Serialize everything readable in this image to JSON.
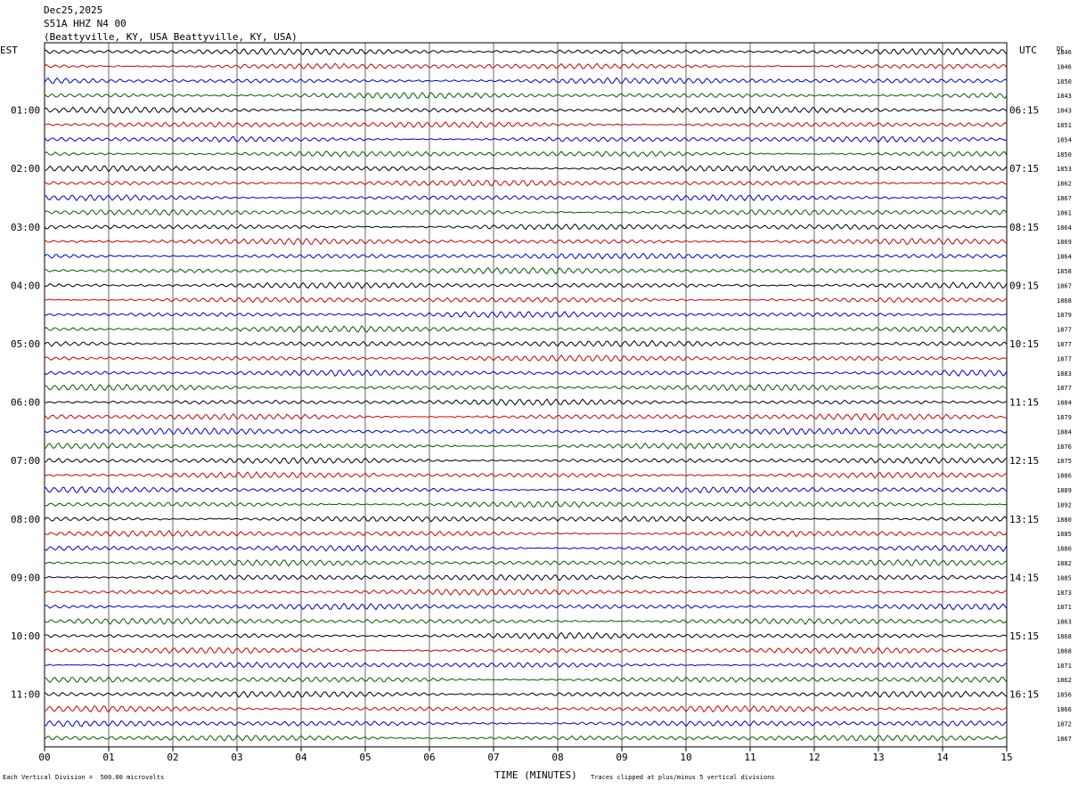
{
  "header": {
    "date": "Dec25,2025",
    "station": "S51A HHZ N4 00",
    "location": "(Beattyville, KY, USA Beattyville, KY, USA)"
  },
  "axes": {
    "left_timezone": "EST",
    "right_timezone": "UTC",
    "right_column_label": "DC",
    "xlabel": "TIME (MINUTES)",
    "x_ticks": [
      "00",
      "01",
      "02",
      "03",
      "04",
      "05",
      "06",
      "07",
      "08",
      "09",
      "10",
      "11",
      "12",
      "13",
      "14",
      "15"
    ]
  },
  "footer": {
    "scale_note": "Each Vertical Division =  500.00 microvolts",
    "clip_note": "Traces clipped at plus/minus 5 vertical divisions"
  },
  "colors": {
    "trace_cycle": [
      "#000000",
      "#d00000",
      "#0000c8",
      "#006000"
    ],
    "grid": "#000000"
  },
  "chart_data": {
    "type": "line",
    "title": "",
    "xlabel": "TIME (MINUTES)",
    "x_range": [
      0,
      15
    ],
    "trace_count": 48,
    "left_hour_labels": [
      "",
      "01:00",
      "02:00",
      "03:00",
      "04:00",
      "05:00",
      "06:00",
      "07:00",
      "08:00",
      "09:00",
      "10:00",
      "11:00"
    ],
    "right_hour_labels": [
      "",
      "06:15",
      "07:15",
      "08:15",
      "09:15",
      "10:15",
      "11:15",
      "12:15",
      "13:15",
      "14:15",
      "15:15",
      "16:15"
    ],
    "dc_offsets": [
      1846,
      1846,
      1850,
      1843,
      1843,
      1851,
      1854,
      1850,
      1853,
      1862,
      1867,
      1861,
      1864,
      1869,
      1864,
      1858,
      1867,
      1868,
      1879,
      1877,
      1877,
      1877,
      1883,
      1877,
      1884,
      1879,
      1884,
      1876,
      1875,
      1886,
      1889,
      1892,
      1880,
      1885,
      1880,
      1882,
      1885,
      1873,
      1871,
      1863,
      1868,
      1868,
      1871,
      1862,
      1856,
      1866,
      1872,
      1867
    ]
  }
}
